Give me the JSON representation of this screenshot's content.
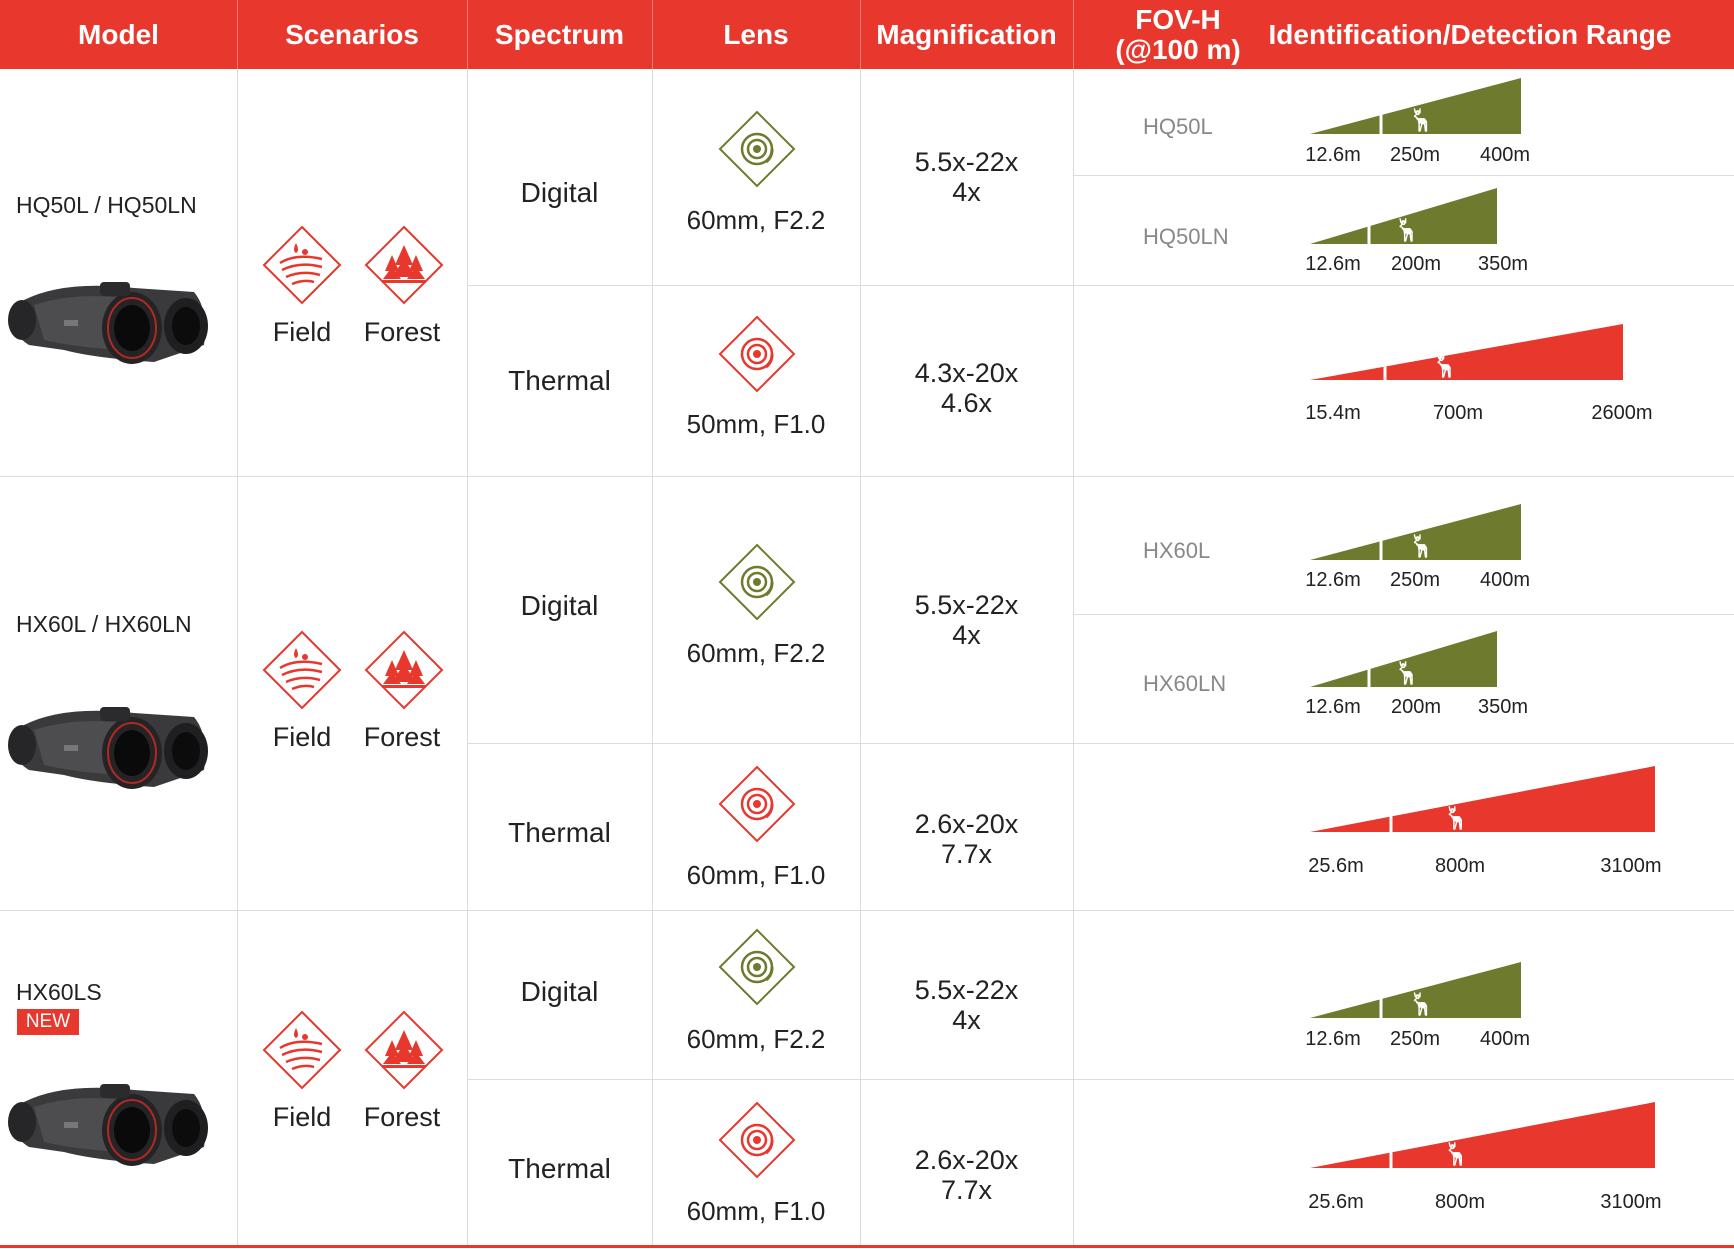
{
  "header": {
    "model": "Model",
    "scenarios": "Scenarios",
    "spectrum": "Spectrum",
    "lens": "Lens",
    "magnification": "Magnification",
    "fov_line1": "FOV-H",
    "fov_line2": "(@100 m)",
    "range": "Identification/Detection Range"
  },
  "colors": {
    "accent": "#e8372c",
    "digital": "#6e7a2d",
    "thermal": "#e8372c"
  },
  "scenarios": {
    "field": "Field",
    "forest": "Forest"
  },
  "rows": [
    {
      "model": "HQ50L / HQ50LN",
      "badge": "",
      "digital": {
        "spectrum": "Digital",
        "lens": "60mm, F2.2",
        "mag1": "5.5x-22x",
        "mag2": "4x",
        "ranges": [
          {
            "sub": "HQ50L",
            "labels": [
              "12.6m",
              "250m",
              "400m"
            ]
          },
          {
            "sub": "HQ50LN",
            "labels": [
              "12.6m",
              "200m",
              "350m"
            ]
          }
        ]
      },
      "thermal": {
        "spectrum": "Thermal",
        "lens": "50mm, F1.0",
        "mag1": "4.3x-20x",
        "mag2": "4.6x",
        "labels": [
          "15.4m",
          "700m",
          "2600m"
        ]
      }
    },
    {
      "model": "HX60L / HX60LN",
      "badge": "",
      "digital": {
        "spectrum": "Digital",
        "lens": "60mm, F2.2",
        "mag1": "5.5x-22x",
        "mag2": "4x",
        "ranges": [
          {
            "sub": "HX60L",
            "labels": [
              "12.6m",
              "250m",
              "400m"
            ]
          },
          {
            "sub": "HX60LN",
            "labels": [
              "12.6m",
              "200m",
              "350m"
            ]
          }
        ]
      },
      "thermal": {
        "spectrum": "Thermal",
        "lens": "60mm, F1.0",
        "mag1": "2.6x-20x",
        "mag2": "7.7x",
        "labels": [
          "25.6m",
          "800m",
          "3100m"
        ]
      }
    },
    {
      "model": "HX60LS",
      "badge": "NEW",
      "digital": {
        "spectrum": "Digital",
        "lens": "60mm, F2.2",
        "mag1": "5.5x-22x",
        "mag2": "4x",
        "ranges": [
          {
            "sub": "",
            "labels": [
              "12.6m",
              "250m",
              "400m"
            ]
          }
        ]
      },
      "thermal": {
        "spectrum": "Thermal",
        "lens": "60mm, F1.0",
        "mag1": "2.6x-20x",
        "mag2": "7.7x",
        "labels": [
          "25.6m",
          "800m",
          "3100m"
        ]
      }
    }
  ]
}
